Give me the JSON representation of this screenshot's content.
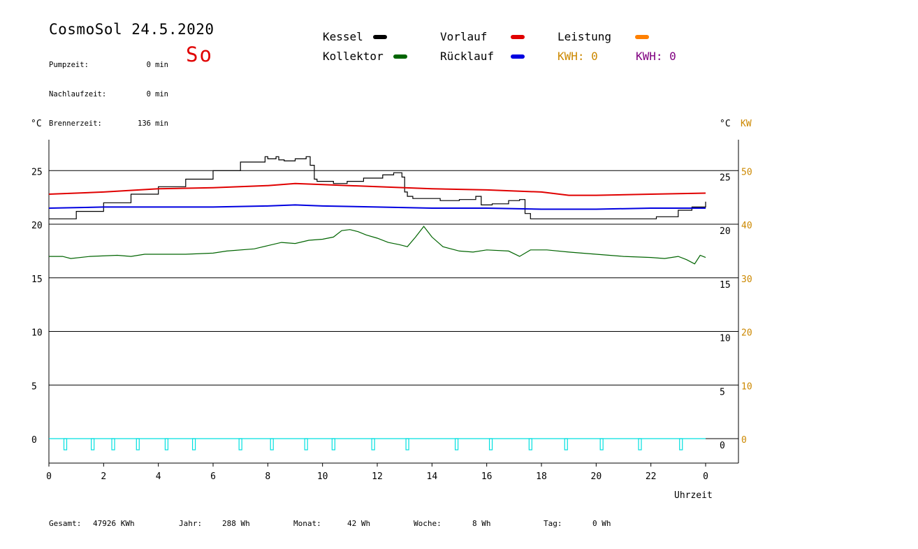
{
  "header": {
    "title": "CosmoSol 24.5.2020",
    "weekday": "So",
    "stats": [
      {
        "label": "Pumpzeit:",
        "value": "0",
        "unit": "min"
      },
      {
        "label": "Nachlaufzeit:",
        "value": "0",
        "unit": "min"
      },
      {
        "label": "Brennerzeit:",
        "value": "136",
        "unit": "min"
      }
    ]
  },
  "legend": {
    "kessel": "Kessel",
    "kollektor": "Kollektor",
    "vorlauf": "Vorlauf",
    "ruecklauf": "Rücklauf",
    "leistung": "Leistung",
    "kwh1": "KWH: 0",
    "kwh2": "KWH: 0"
  },
  "colors": {
    "kessel": "#000000",
    "kollektor": "#006400",
    "vorlauf": "#e00000",
    "ruecklauf": "#0000e0",
    "leistung": "#ff8000",
    "kwh2": "#800080",
    "burner": "#00e0e0",
    "kw_axis": "#cc8800"
  },
  "axes": {
    "left_unit": "°C",
    "right_unit": "°C",
    "kw_unit": "KW",
    "x_label": "Uhrzeit"
  },
  "footer": {
    "gesamt_label": "Gesamt:",
    "gesamt_value": "47926 KWh",
    "jahr_label": "Jahr:",
    "jahr_value": "288 Wh",
    "monat_label": "Monat:",
    "monat_value": "42 Wh",
    "woche_label": "Woche:",
    "woche_value": "8 Wh",
    "tag_label": "Tag:",
    "tag_value": "0 Wh"
  },
  "chart_data": {
    "type": "line",
    "xlabel": "Uhrzeit",
    "ylabel": "°C",
    "xlim": [
      0,
      24
    ],
    "ylim": [
      -2,
      28
    ],
    "x_ticks": [
      "0",
      "2",
      "4",
      "6",
      "8",
      "10",
      "12",
      "14",
      "16",
      "18",
      "20",
      "22",
      "0"
    ],
    "y_ticks": [
      0,
      5,
      10,
      15,
      20,
      25
    ],
    "kw_ticks": [
      0,
      10,
      20,
      30,
      40,
      50
    ],
    "grid": true,
    "series": [
      {
        "name": "Kessel",
        "color": "#000000",
        "step": true,
        "points": [
          [
            0,
            20.5
          ],
          [
            1,
            21.2
          ],
          [
            2,
            22.0
          ],
          [
            3,
            22.8
          ],
          [
            4,
            23.5
          ],
          [
            5,
            24.2
          ],
          [
            6,
            25.0
          ],
          [
            7,
            25.8
          ],
          [
            7.9,
            26.3
          ],
          [
            8,
            26.1
          ],
          [
            8.3,
            26.3
          ],
          [
            8.4,
            26.0
          ],
          [
            8.6,
            25.9
          ],
          [
            9.0,
            26.1
          ],
          [
            9.4,
            26.3
          ],
          [
            9.55,
            25.5
          ],
          [
            9.7,
            24.2
          ],
          [
            9.8,
            24.0
          ],
          [
            10.3,
            24.0
          ],
          [
            10.4,
            23.8
          ],
          [
            10.9,
            24.0
          ],
          [
            11.5,
            24.3
          ],
          [
            12.2,
            24.6
          ],
          [
            12.6,
            24.8
          ],
          [
            12.9,
            24.4
          ],
          [
            13.0,
            23.0
          ],
          [
            13.1,
            22.6
          ],
          [
            13.3,
            22.4
          ],
          [
            14.0,
            22.4
          ],
          [
            14.3,
            22.2
          ],
          [
            15.0,
            22.3
          ],
          [
            15.6,
            22.6
          ],
          [
            15.8,
            21.8
          ],
          [
            16.2,
            21.9
          ],
          [
            16.8,
            22.2
          ],
          [
            17.2,
            22.3
          ],
          [
            17.4,
            21.0
          ],
          [
            17.6,
            20.5
          ],
          [
            18,
            20.5
          ],
          [
            20,
            20.5
          ],
          [
            22,
            20.5
          ],
          [
            22.2,
            20.7
          ],
          [
            23,
            21.3
          ],
          [
            23.5,
            21.6
          ],
          [
            24,
            22.1
          ]
        ]
      },
      {
        "name": "Vorlauf",
        "color": "#e00000",
        "step": false,
        "points": [
          [
            0,
            22.8
          ],
          [
            2,
            23.0
          ],
          [
            4,
            23.3
          ],
          [
            6,
            23.4
          ],
          [
            8,
            23.6
          ],
          [
            9,
            23.8
          ],
          [
            10,
            23.7
          ],
          [
            12,
            23.5
          ],
          [
            14,
            23.3
          ],
          [
            16,
            23.2
          ],
          [
            18,
            23.0
          ],
          [
            19,
            22.7
          ],
          [
            20,
            22.7
          ],
          [
            22,
            22.8
          ],
          [
            24,
            22.9
          ]
        ]
      },
      {
        "name": "Rücklauf",
        "color": "#0000e0",
        "step": false,
        "points": [
          [
            0,
            21.5
          ],
          [
            2,
            21.6
          ],
          [
            4,
            21.6
          ],
          [
            6,
            21.6
          ],
          [
            8,
            21.7
          ],
          [
            9,
            21.8
          ],
          [
            10,
            21.7
          ],
          [
            12,
            21.6
          ],
          [
            14,
            21.5
          ],
          [
            16,
            21.5
          ],
          [
            18,
            21.4
          ],
          [
            20,
            21.4
          ],
          [
            22,
            21.5
          ],
          [
            24,
            21.5
          ]
        ]
      },
      {
        "name": "Kollektor",
        "color": "#006400",
        "step": false,
        "points": [
          [
            0,
            17.0
          ],
          [
            0.5,
            17.0
          ],
          [
            0.8,
            16.8
          ],
          [
            1.5,
            17.0
          ],
          [
            2.5,
            17.1
          ],
          [
            3,
            17.0
          ],
          [
            3.5,
            17.2
          ],
          [
            5,
            17.2
          ],
          [
            6,
            17.3
          ],
          [
            6.5,
            17.5
          ],
          [
            7.5,
            17.7
          ],
          [
            8,
            18.0
          ],
          [
            8.5,
            18.3
          ],
          [
            9,
            18.2
          ],
          [
            9.5,
            18.5
          ],
          [
            10.0,
            18.6
          ],
          [
            10.4,
            18.8
          ],
          [
            10.7,
            19.4
          ],
          [
            11,
            19.5
          ],
          [
            11.3,
            19.3
          ],
          [
            11.6,
            19.0
          ],
          [
            12,
            18.7
          ],
          [
            12.4,
            18.3
          ],
          [
            12.8,
            18.1
          ],
          [
            13.1,
            17.9
          ],
          [
            13.4,
            18.8
          ],
          [
            13.7,
            19.8
          ],
          [
            14,
            18.8
          ],
          [
            14.4,
            17.9
          ],
          [
            15,
            17.5
          ],
          [
            15.5,
            17.4
          ],
          [
            16,
            17.6
          ],
          [
            16.8,
            17.5
          ],
          [
            17.2,
            17.0
          ],
          [
            17.6,
            17.6
          ],
          [
            18.2,
            17.6
          ],
          [
            19,
            17.4
          ],
          [
            20,
            17.2
          ],
          [
            21,
            17.0
          ],
          [
            22,
            16.9
          ],
          [
            22.5,
            16.8
          ],
          [
            23,
            17.0
          ],
          [
            23.3,
            16.7
          ],
          [
            23.6,
            16.3
          ],
          [
            23.8,
            17.1
          ],
          [
            24,
            16.9
          ]
        ]
      },
      {
        "name": "Brenner",
        "color": "#00e0e0",
        "pulses": [
          0.6,
          1.6,
          2.35,
          3.25,
          4.3,
          5.3,
          7.0,
          8.15,
          9.4,
          10.4,
          11.85,
          13.1,
          14.9,
          16.15,
          17.6,
          18.9,
          20.2,
          21.6,
          23.1
        ]
      }
    ]
  }
}
